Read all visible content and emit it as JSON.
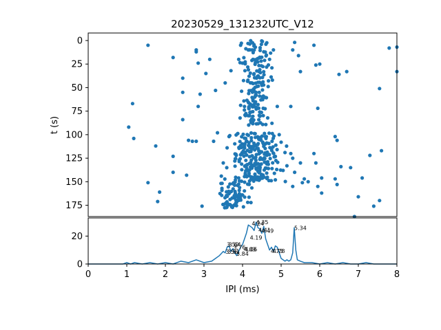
{
  "chart_data": [
    {
      "type": "scatter",
      "title": "20230529_131232UTC_V12",
      "ylabel": "t (s)",
      "xlim": [
        0,
        8
      ],
      "ylim": [
        187,
        -8
      ],
      "y_inverted": true,
      "yticks": [
        0,
        25,
        50,
        75,
        100,
        125,
        150,
        175
      ],
      "color": "#1f77b4",
      "points": [
        [
          1.55,
          5
        ],
        [
          1.15,
          67
        ],
        [
          1.05,
          92
        ],
        [
          1.18,
          104
        ],
        [
          1.75,
          112
        ],
        [
          1.55,
          151
        ],
        [
          1.85,
          161
        ],
        [
          1.8,
          171
        ],
        [
          2.2,
          18
        ],
        [
          2.2,
          123
        ],
        [
          2.2,
          140
        ],
        [
          2.45,
          40
        ],
        [
          2.45,
          55
        ],
        [
          2.45,
          84
        ],
        [
          2.55,
          143
        ],
        [
          2.6,
          106
        ],
        [
          2.7,
          107
        ],
        [
          2.8,
          107
        ],
        [
          2.8,
          10
        ],
        [
          2.8,
          12
        ],
        [
          2.85,
          24
        ],
        [
          2.85,
          70
        ],
        [
          2.9,
          57
        ],
        [
          2.95,
          176
        ],
        [
          3.05,
          35
        ],
        [
          3.15,
          20
        ],
        [
          3.25,
          107
        ],
        [
          3.3,
          53
        ],
        [
          3.35,
          98
        ],
        [
          3.45,
          144
        ],
        [
          3.5,
          130
        ],
        [
          3.55,
          45
        ],
        [
          3.6,
          114
        ],
        [
          3.65,
          102
        ],
        [
          3.7,
          32
        ],
        [
          3.75,
          152
        ],
        [
          3.8,
          128
        ],
        [
          3.9,
          20
        ],
        [
          3.95,
          5
        ],
        [
          4.0,
          24
        ],
        [
          3.9,
          146
        ],
        [
          4.15,
          10
        ],
        [
          4.05,
          70
        ],
        [
          4.2,
          68
        ],
        [
          4.4,
          68
        ],
        [
          4.35,
          55
        ],
        [
          4.55,
          12
        ],
        [
          4.6,
          120
        ],
        [
          4.7,
          20
        ],
        [
          4.75,
          115
        ],
        [
          4.8,
          10
        ],
        [
          4.85,
          148
        ],
        [
          4.9,
          70
        ],
        [
          4.95,
          100
        ],
        [
          5.0,
          108
        ],
        [
          5.05,
          138
        ],
        [
          5.1,
          119
        ],
        [
          5.15,
          133
        ],
        [
          5.25,
          70
        ],
        [
          5.3,
          10
        ],
        [
          5.35,
          2
        ],
        [
          5.25,
          120
        ],
        [
          5.3,
          125
        ],
        [
          5.35,
          140
        ],
        [
          5.3,
          155
        ],
        [
          5.45,
          16
        ],
        [
          5.5,
          33
        ],
        [
          5.5,
          130
        ],
        [
          5.55,
          151
        ],
        [
          5.6,
          147
        ],
        [
          5.7,
          150
        ],
        [
          5.85,
          5
        ],
        [
          5.9,
          26
        ],
        [
          5.85,
          120
        ],
        [
          5.9,
          130
        ],
        [
          5.95,
          72
        ],
        [
          6.0,
          25
        ],
        [
          5.95,
          155
        ],
        [
          6.05,
          146
        ],
        [
          6.05,
          162
        ],
        [
          6.4,
          102
        ],
        [
          6.45,
          106
        ],
        [
          6.4,
          147
        ],
        [
          6.45,
          153
        ],
        [
          6.5,
          36
        ],
        [
          6.55,
          134
        ],
        [
          6.7,
          33
        ],
        [
          6.8,
          135
        ],
        [
          6.9,
          187
        ],
        [
          7.0,
          166
        ],
        [
          7.1,
          146
        ],
        [
          7.3,
          122
        ],
        [
          7.4,
          176
        ],
        [
          7.6,
          117
        ],
        [
          7.55,
          170
        ],
        [
          7.55,
          51
        ],
        [
          7.8,
          8
        ],
        [
          8.0,
          7
        ],
        [
          8.0,
          33
        ]
      ],
      "clusters": [
        {
          "t_range": [
            0,
            90
          ],
          "x_center": 4.35,
          "x_spread": 0.18,
          "count": 170
        },
        {
          "t_range": [
            98,
            150
          ],
          "x_center": 4.3,
          "x_spread": 0.28,
          "count": 230
        },
        {
          "t_range": [
            150,
            178
          ],
          "x_center": 3.75,
          "x_spread": 0.2,
          "count": 80
        }
      ]
    },
    {
      "type": "line",
      "xlabel": "IPI (ms)",
      "xlim": [
        0,
        8
      ],
      "ylim": [
        0,
        33
      ],
      "xticks": [
        0,
        1,
        2,
        3,
        4,
        5,
        6,
        7,
        8
      ],
      "yticks": [
        0,
        20
      ],
      "color": "#1f77b4",
      "x": [
        0,
        0.3,
        0.6,
        0.9,
        1.0,
        1.1,
        1.2,
        1.4,
        1.6,
        1.8,
        2.0,
        2.2,
        2.4,
        2.6,
        2.8,
        3.0,
        3.2,
        3.3,
        3.4,
        3.5,
        3.55,
        3.6,
        3.65,
        3.7,
        3.75,
        3.8,
        3.85,
        3.9,
        3.95,
        4.0,
        4.05,
        4.1,
        4.15,
        4.2,
        4.25,
        4.3,
        4.35,
        4.4,
        4.45,
        4.5,
        4.55,
        4.6,
        4.65,
        4.7,
        4.75,
        4.8,
        4.85,
        4.9,
        4.95,
        5.0,
        5.05,
        5.1,
        5.15,
        5.2,
        5.25,
        5.3,
        5.34,
        5.38,
        5.42,
        5.5,
        5.6,
        5.8,
        6.0,
        6.2,
        6.4,
        6.6,
        6.8,
        7.0,
        7.2,
        7.4,
        7.6,
        7.8,
        8.0
      ],
      "y": [
        0,
        0,
        0,
        0,
        1,
        0,
        1,
        0,
        1,
        0,
        1,
        0,
        2,
        1,
        3,
        1,
        2,
        4,
        6,
        9,
        8,
        12,
        13,
        9,
        11,
        8,
        6,
        9,
        12,
        14,
        18,
        22,
        28,
        27,
        26,
        24,
        30,
        26,
        25,
        22,
        27,
        18,
        14,
        10,
        12,
        9,
        13,
        12,
        8,
        4,
        3,
        2,
        3,
        2,
        3,
        8,
        26,
        10,
        3,
        2,
        1,
        1,
        0,
        1,
        0,
        1,
        0,
        0,
        1,
        0,
        0,
        0,
        0
      ],
      "peak_labels": [
        {
          "x": 3.59,
          "y": 12.5,
          "text": "3.59"
        },
        {
          "x": 3.64,
          "y": 12.5,
          "text": "3.64"
        },
        {
          "x": 3.56,
          "y": 7.5,
          "text": "3.56"
        },
        {
          "x": 3.61,
          "y": 7.5,
          "text": "3.61"
        },
        {
          "x": 3.76,
          "y": 10.5,
          "text": "3.76"
        },
        {
          "x": 3.84,
          "y": 6,
          "text": "3.84"
        },
        {
          "x": 4.03,
          "y": 9,
          "text": "4.03"
        },
        {
          "x": 4.06,
          "y": 9,
          "text": "4.06"
        },
        {
          "x": 4.19,
          "y": 17.5,
          "text": "4.19"
        },
        {
          "x": 4.24,
          "y": 27.5,
          "text": "4.24"
        },
        {
          "x": 4.35,
          "y": 28.5,
          "text": "4.35"
        },
        {
          "x": 4.41,
          "y": 23,
          "text": "4.41"
        },
        {
          "x": 4.49,
          "y": 22.5,
          "text": "4.49"
        },
        {
          "x": 4.73,
          "y": 8,
          "text": "4.73"
        },
        {
          "x": 4.78,
          "y": 8,
          "text": "4.78"
        },
        {
          "x": 5.34,
          "y": 24.5,
          "text": "5.34"
        }
      ]
    }
  ]
}
